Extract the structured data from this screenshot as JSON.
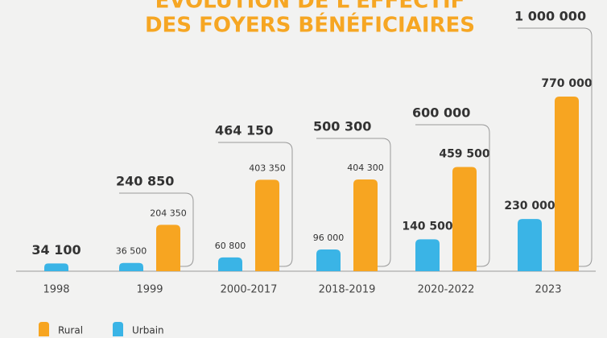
{
  "chart_data": {
    "type": "bar",
    "title": "ÉVOLUTION DE L'EFFECTIF",
    "subtitle": "DES FOYERS BÉNÉFICIAIRES",
    "categories": [
      "1998",
      "1999",
      "2000-2017",
      "2018-2019",
      "2020-2022",
      "2023"
    ],
    "series": [
      {
        "name": "Urbain",
        "color": "#3ab4e6",
        "values": [
          34100,
          36500,
          60800,
          96000,
          140500,
          230000
        ],
        "value_labels": [
          "34 100",
          "36 500",
          "60 800",
          "96 000",
          "140 500",
          "230 000"
        ]
      },
      {
        "name": "Rural",
        "color": "#f7a521",
        "values": [
          null,
          204350,
          403350,
          404300,
          459500,
          770000
        ],
        "value_labels": [
          null,
          "204 350",
          "403 350",
          "404 300",
          "459 500",
          "770 000"
        ]
      }
    ],
    "totals": [
      null,
      240850,
      464150,
      500300,
      600000,
      1000000
    ],
    "total_labels": [
      null,
      "240 850",
      "464 150",
      "500 300",
      "600 000",
      "1 000 000"
    ],
    "legend": "bottom-left"
  }
}
